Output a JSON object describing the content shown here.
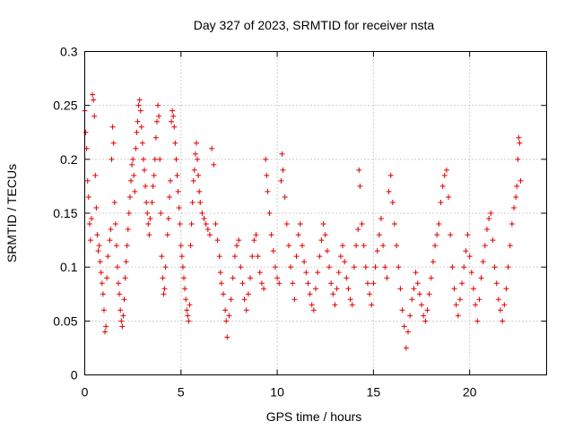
{
  "chart_data": {
    "type": "scatter",
    "title": "Day 327 of 2023, SRMTID for receiver nsta",
    "xlabel": "GPS time / hours",
    "ylabel": "SRMTID / TECUs",
    "xlim": [
      0,
      24
    ],
    "ylim": [
      0,
      0.3
    ],
    "xticks": [
      "0",
      "5",
      "10",
      "15",
      "20"
    ],
    "xtick_values": [
      0,
      5,
      10,
      15,
      20
    ],
    "yticks": [
      "0",
      "0.05",
      "0.1",
      "0.15",
      "0.2",
      "0.25",
      "0.3"
    ],
    "ytick_values": [
      0,
      0.05,
      0.1,
      0.15,
      0.2,
      0.25,
      0.3
    ],
    "grid": true,
    "marker": "plus",
    "color": "#e00000",
    "series": [
      {
        "values": [
          [
            0.0,
            0.245
          ],
          [
            0.05,
            0.225
          ],
          [
            0.1,
            0.21
          ],
          [
            0.15,
            0.18
          ],
          [
            0.2,
            0.165
          ],
          [
            0.25,
            0.14
          ],
          [
            0.3,
            0.125
          ],
          [
            0.35,
            0.145
          ],
          [
            0.4,
            0.26
          ],
          [
            0.45,
            0.255
          ],
          [
            0.5,
            0.24
          ],
          [
            0.55,
            0.185
          ],
          [
            0.6,
            0.155
          ],
          [
            0.65,
            0.13
          ],
          [
            0.7,
            0.115
          ],
          [
            0.75,
            0.12
          ],
          [
            0.8,
            0.105
          ],
          [
            0.85,
            0.095
          ],
          [
            0.9,
            0.085
          ],
          [
            0.95,
            0.075
          ],
          [
            1.0,
            0.06
          ],
          [
            1.05,
            0.04
          ],
          [
            1.1,
            0.045
          ],
          [
            1.15,
            0.09
          ],
          [
            1.2,
            0.11
          ],
          [
            1.3,
            0.125
          ],
          [
            1.35,
            0.135
          ],
          [
            1.4,
            0.2
          ],
          [
            1.45,
            0.23
          ],
          [
            1.5,
            0.215
          ],
          [
            1.55,
            0.16
          ],
          [
            1.6,
            0.14
          ],
          [
            1.65,
            0.12
          ],
          [
            1.7,
            0.1
          ],
          [
            1.75,
            0.085
          ],
          [
            1.8,
            0.075
          ],
          [
            1.85,
            0.06
          ],
          [
            1.9,
            0.05
          ],
          [
            1.95,
            0.045
          ],
          [
            2.0,
            0.055
          ],
          [
            2.05,
            0.07
          ],
          [
            2.1,
            0.09
          ],
          [
            2.15,
            0.105
          ],
          [
            2.2,
            0.12
          ],
          [
            2.25,
            0.135
          ],
          [
            2.3,
            0.15
          ],
          [
            2.35,
            0.165
          ],
          [
            2.4,
            0.18
          ],
          [
            2.45,
            0.195
          ],
          [
            2.5,
            0.2
          ],
          [
            2.55,
            0.185
          ],
          [
            2.6,
            0.17
          ],
          [
            2.65,
            0.21
          ],
          [
            2.7,
            0.225
          ],
          [
            2.75,
            0.235
          ],
          [
            2.8,
            0.25
          ],
          [
            2.85,
            0.255
          ],
          [
            2.9,
            0.245
          ],
          [
            2.95,
            0.23
          ],
          [
            3.0,
            0.215
          ],
          [
            3.05,
            0.2
          ],
          [
            3.1,
            0.19
          ],
          [
            3.15,
            0.175
          ],
          [
            3.2,
            0.16
          ],
          [
            3.25,
            0.15
          ],
          [
            3.3,
            0.14
          ],
          [
            3.35,
            0.13
          ],
          [
            3.4,
            0.145
          ],
          [
            3.5,
            0.16
          ],
          [
            3.55,
            0.175
          ],
          [
            3.6,
            0.185
          ],
          [
            3.65,
            0.2
          ],
          [
            3.7,
            0.22
          ],
          [
            3.75,
            0.235
          ],
          [
            3.8,
            0.25
          ],
          [
            3.85,
            0.24
          ],
          [
            3.9,
            0.2
          ],
          [
            3.95,
            0.15
          ],
          [
            4.0,
            0.11
          ],
          [
            4.05,
            0.09
          ],
          [
            4.1,
            0.075
          ],
          [
            4.15,
            0.08
          ],
          [
            4.2,
            0.1
          ],
          [
            4.3,
            0.13
          ],
          [
            4.35,
            0.145
          ],
          [
            4.4,
            0.165
          ],
          [
            4.45,
            0.18
          ],
          [
            4.5,
            0.235
          ],
          [
            4.55,
            0.245
          ],
          [
            4.6,
            0.24
          ],
          [
            4.65,
            0.23
          ],
          [
            4.7,
            0.215
          ],
          [
            4.75,
            0.2
          ],
          [
            4.8,
            0.185
          ],
          [
            4.85,
            0.17
          ],
          [
            4.9,
            0.155
          ],
          [
            4.95,
            0.14
          ],
          [
            5.0,
            0.12
          ],
          [
            5.05,
            0.11
          ],
          [
            5.1,
            0.1
          ],
          [
            5.15,
            0.09
          ],
          [
            5.2,
            0.08
          ],
          [
            5.25,
            0.07
          ],
          [
            5.3,
            0.06
          ],
          [
            5.35,
            0.055
          ],
          [
            5.4,
            0.05
          ],
          [
            5.45,
            0.065
          ],
          [
            5.5,
            0.12
          ],
          [
            5.55,
            0.14
          ],
          [
            5.6,
            0.16
          ],
          [
            5.65,
            0.18
          ],
          [
            5.7,
            0.19
          ],
          [
            5.75,
            0.205
          ],
          [
            5.8,
            0.215
          ],
          [
            5.85,
            0.2
          ],
          [
            5.9,
            0.185
          ],
          [
            5.95,
            0.17
          ],
          [
            6.0,
            0.16
          ],
          [
            6.1,
            0.15
          ],
          [
            6.2,
            0.145
          ],
          [
            6.3,
            0.14
          ],
          [
            6.4,
            0.135
          ],
          [
            6.5,
            0.13
          ],
          [
            6.6,
            0.21
          ],
          [
            6.7,
            0.195
          ],
          [
            6.8,
            0.14
          ],
          [
            6.9,
            0.125
          ],
          [
            7.0,
            0.11
          ],
          [
            7.05,
            0.095
          ],
          [
            7.1,
            0.085
          ],
          [
            7.2,
            0.075
          ],
          [
            7.3,
            0.06
          ],
          [
            7.35,
            0.05
          ],
          [
            7.4,
            0.035
          ],
          [
            7.5,
            0.055
          ],
          [
            7.6,
            0.07
          ],
          [
            7.7,
            0.09
          ],
          [
            7.8,
            0.11
          ],
          [
            7.9,
            0.12
          ],
          [
            8.0,
            0.125
          ],
          [
            8.1,
            0.1
          ],
          [
            8.2,
            0.085
          ],
          [
            8.3,
            0.07
          ],
          [
            8.4,
            0.06
          ],
          [
            8.5,
            0.075
          ],
          [
            8.6,
            0.09
          ],
          [
            8.7,
            0.11
          ],
          [
            8.8,
            0.125
          ],
          [
            8.9,
            0.13
          ],
          [
            9.0,
            0.11
          ],
          [
            9.1,
            0.095
          ],
          [
            9.2,
            0.085
          ],
          [
            9.3,
            0.08
          ],
          [
            9.4,
            0.2
          ],
          [
            9.45,
            0.185
          ],
          [
            9.5,
            0.17
          ],
          [
            9.6,
            0.15
          ],
          [
            9.7,
            0.13
          ],
          [
            9.8,
            0.115
          ],
          [
            9.9,
            0.1
          ],
          [
            10.0,
            0.09
          ],
          [
            10.1,
            0.085
          ],
          [
            10.2,
            0.18
          ],
          [
            10.25,
            0.205
          ],
          [
            10.3,
            0.19
          ],
          [
            10.4,
            0.165
          ],
          [
            10.5,
            0.14
          ],
          [
            10.6,
            0.12
          ],
          [
            10.7,
            0.1
          ],
          [
            10.8,
            0.085
          ],
          [
            10.9,
            0.07
          ],
          [
            11.0,
            0.11
          ],
          [
            11.1,
            0.13
          ],
          [
            11.2,
            0.14
          ],
          [
            11.3,
            0.12
          ],
          [
            11.4,
            0.105
          ],
          [
            11.5,
            0.095
          ],
          [
            11.6,
            0.085
          ],
          [
            11.7,
            0.075
          ],
          [
            11.8,
            0.065
          ],
          [
            11.9,
            0.06
          ],
          [
            12.0,
            0.08
          ],
          [
            12.1,
            0.095
          ],
          [
            12.2,
            0.11
          ],
          [
            12.3,
            0.125
          ],
          [
            12.4,
            0.14
          ],
          [
            12.5,
            0.13
          ],
          [
            12.6,
            0.115
          ],
          [
            12.7,
            0.1
          ],
          [
            12.8,
            0.085
          ],
          [
            12.9,
            0.075
          ],
          [
            13.0,
            0.065
          ],
          [
            13.1,
            0.08
          ],
          [
            13.2,
            0.095
          ],
          [
            13.3,
            0.11
          ],
          [
            13.4,
            0.12
          ],
          [
            13.5,
            0.105
          ],
          [
            13.6,
            0.09
          ],
          [
            13.7,
            0.08
          ],
          [
            13.8,
            0.07
          ],
          [
            13.9,
            0.065
          ],
          [
            14.0,
            0.1
          ],
          [
            14.1,
            0.12
          ],
          [
            14.2,
            0.135
          ],
          [
            14.25,
            0.19
          ],
          [
            14.3,
            0.175
          ],
          [
            14.4,
            0.14
          ],
          [
            14.5,
            0.12
          ],
          [
            14.6,
            0.1
          ],
          [
            14.7,
            0.085
          ],
          [
            14.8,
            0.075
          ],
          [
            14.9,
            0.065
          ],
          [
            15.0,
            0.085
          ],
          [
            15.1,
            0.1
          ],
          [
            15.2,
            0.115
          ],
          [
            15.3,
            0.13
          ],
          [
            15.4,
            0.145
          ],
          [
            15.5,
            0.12
          ],
          [
            15.6,
            0.1
          ],
          [
            15.7,
            0.09
          ],
          [
            15.8,
            0.17
          ],
          [
            15.9,
            0.185
          ],
          [
            16.0,
            0.16
          ],
          [
            16.1,
            0.14
          ],
          [
            16.2,
            0.12
          ],
          [
            16.3,
            0.1
          ],
          [
            16.4,
            0.08
          ],
          [
            16.5,
            0.06
          ],
          [
            16.6,
            0.045
          ],
          [
            16.7,
            0.025
          ],
          [
            16.8,
            0.04
          ],
          [
            16.9,
            0.055
          ],
          [
            17.0,
            0.07
          ],
          [
            17.1,
            0.08
          ],
          [
            17.2,
            0.095
          ],
          [
            17.3,
            0.085
          ],
          [
            17.4,
            0.075
          ],
          [
            17.5,
            0.065
          ],
          [
            17.6,
            0.055
          ],
          [
            17.7,
            0.05
          ],
          [
            17.8,
            0.06
          ],
          [
            17.9,
            0.075
          ],
          [
            18.0,
            0.09
          ],
          [
            18.1,
            0.105
          ],
          [
            18.2,
            0.12
          ],
          [
            18.3,
            0.13
          ],
          [
            18.4,
            0.14
          ],
          [
            18.5,
            0.16
          ],
          [
            18.6,
            0.175
          ],
          [
            18.7,
            0.185
          ],
          [
            18.8,
            0.19
          ],
          [
            18.9,
            0.165
          ],
          [
            19.0,
            0.13
          ],
          [
            19.1,
            0.1
          ],
          [
            19.2,
            0.08
          ],
          [
            19.3,
            0.065
          ],
          [
            19.4,
            0.055
          ],
          [
            19.5,
            0.07
          ],
          [
            19.6,
            0.085
          ],
          [
            19.7,
            0.1
          ],
          [
            19.8,
            0.115
          ],
          [
            19.9,
            0.13
          ],
          [
            20.0,
            0.11
          ],
          [
            20.1,
            0.095
          ],
          [
            20.2,
            0.08
          ],
          [
            20.3,
            0.065
          ],
          [
            20.4,
            0.05
          ],
          [
            20.5,
            0.07
          ],
          [
            20.6,
            0.09
          ],
          [
            20.7,
            0.105
          ],
          [
            20.8,
            0.12
          ],
          [
            20.9,
            0.135
          ],
          [
            21.0,
            0.145
          ],
          [
            21.1,
            0.15
          ],
          [
            21.2,
            0.125
          ],
          [
            21.3,
            0.1
          ],
          [
            21.4,
            0.085
          ],
          [
            21.5,
            0.07
          ],
          [
            21.6,
            0.06
          ],
          [
            21.7,
            0.05
          ],
          [
            21.8,
            0.065
          ],
          [
            21.9,
            0.08
          ],
          [
            22.0,
            0.1
          ],
          [
            22.1,
            0.12
          ],
          [
            22.2,
            0.14
          ],
          [
            22.3,
            0.155
          ],
          [
            22.4,
            0.165
          ],
          [
            22.45,
            0.175
          ],
          [
            22.5,
            0.2
          ],
          [
            22.55,
            0.22
          ],
          [
            22.6,
            0.215
          ],
          [
            22.65,
            0.18
          ]
        ]
      }
    ]
  }
}
